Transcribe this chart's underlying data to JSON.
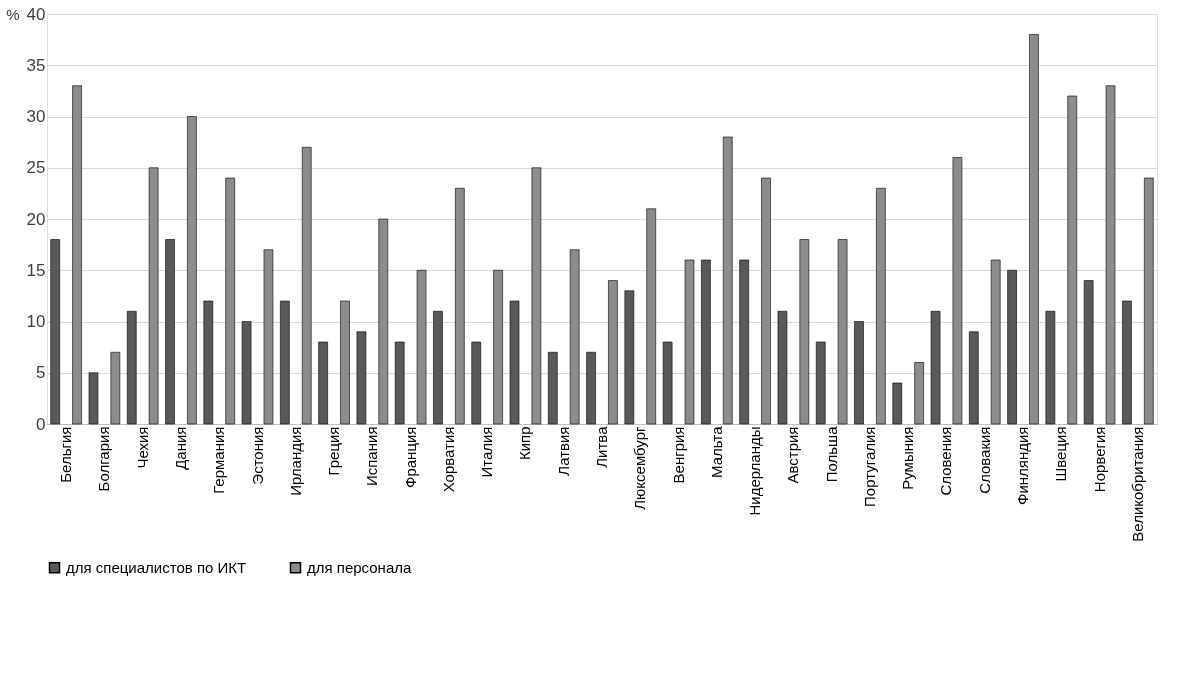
{
  "chart_data": {
    "type": "bar",
    "ylabel": "%",
    "categories": [
      "Бельгия",
      "Болгария",
      "Чехия",
      "Дания",
      "Германия",
      "Эстония",
      "Ирландия",
      "Греция",
      "Испания",
      "Франция",
      "Хорватия",
      "Италия",
      "Кипр",
      "Латвия",
      "Литва",
      "Люксембург",
      "Венгрия",
      "Мальта",
      "Нидерланды",
      "Австрия",
      "Польша",
      "Португалия",
      "Румыния",
      "Словения",
      "Словакия",
      "Финляндия",
      "Швеция",
      "Норвегия",
      "Великобритания"
    ],
    "series": [
      {
        "name": "для специалистов по ИКТ",
        "color": "#595959",
        "values": [
          18,
          5,
          11,
          18,
          12,
          10,
          12,
          8,
          9,
          8,
          11,
          8,
          12,
          7,
          7,
          13,
          8,
          16,
          16,
          11,
          8,
          10,
          4,
          11,
          9,
          15,
          11,
          14,
          12
        ]
      },
      {
        "name": "для персонала",
        "color": "#8c8c8c",
        "values": [
          33,
          7,
          25,
          30,
          24,
          17,
          27,
          12,
          20,
          15,
          23,
          15,
          25,
          17,
          14,
          21,
          16,
          28,
          24,
          18,
          18,
          23,
          6,
          26,
          16,
          38,
          32,
          33,
          24
        ]
      }
    ],
    "ylim": [
      0,
      40
    ],
    "yticks": [
      0,
      5,
      10,
      15,
      20,
      25,
      30,
      35,
      40
    ],
    "grid": "y",
    "legend": "bottom"
  }
}
